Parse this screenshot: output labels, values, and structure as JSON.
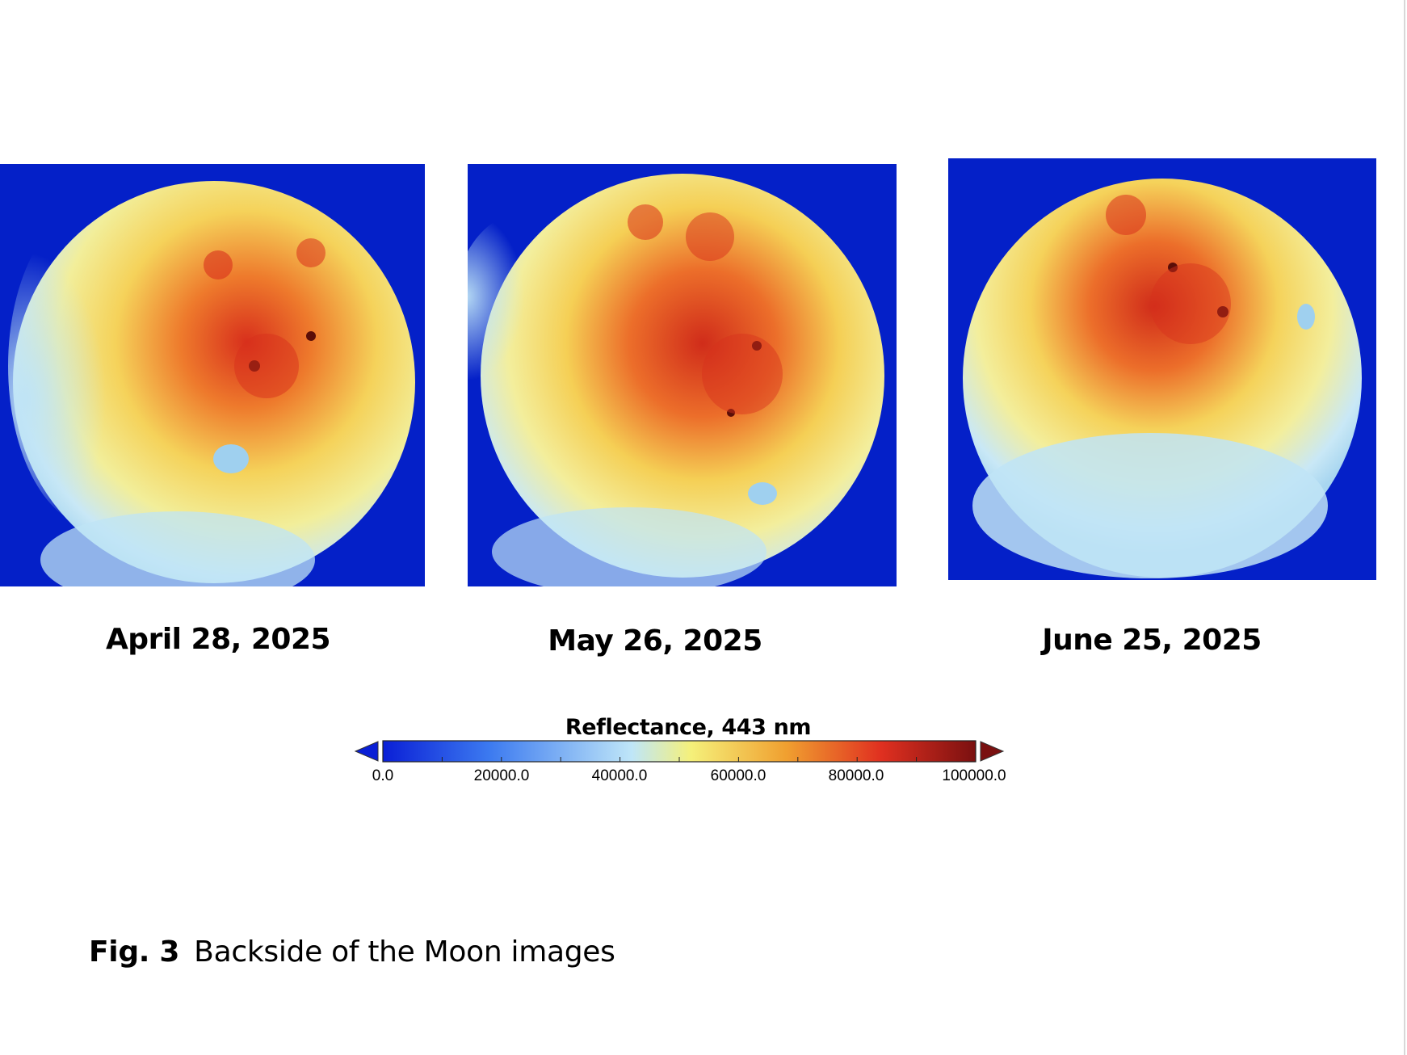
{
  "figure": {
    "panels": [
      {
        "date": "April 28, 2025"
      },
      {
        "date": "May 26, 2025"
      },
      {
        "date": "June 25, 2025"
      }
    ],
    "colorbar": {
      "title": "Reflectance, 443 nm",
      "ticks": [
        "0.0",
        "20000.0",
        "40000.0",
        "60000.0",
        "80000.0",
        "100000.0"
      ],
      "range": [
        0,
        100000
      ],
      "colormap": [
        "#0a1fd6",
        "#3c7af0",
        "#bfe6f8",
        "#f5f07a",
        "#f0a030",
        "#e03020",
        "#7a1010"
      ]
    },
    "caption": {
      "fig_number": "Fig. 3",
      "text": "Backside of the Moon images"
    }
  },
  "colors": {
    "background_space": "#0420c8",
    "low": "#bfe4f6",
    "mid": "#f4d25a",
    "high": "#d8301c"
  }
}
